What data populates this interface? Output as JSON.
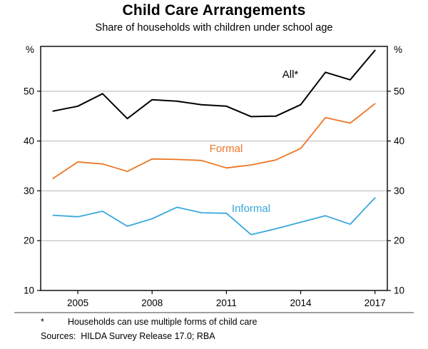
{
  "header": {
    "title": "Child Care Arrangements",
    "subtitle": "Share of households with children under school age"
  },
  "chart_data": {
    "type": "line",
    "title": "Child Care Arrangements",
    "subtitle": "Share of households with children under school age",
    "x": [
      2004,
      2005,
      2006,
      2007,
      2008,
      2009,
      2010,
      2011,
      2012,
      2013,
      2014,
      2015,
      2016,
      2017
    ],
    "series": [
      {
        "name": "All*",
        "color": "#000000",
        "values": [
          46.0,
          47.0,
          49.5,
          44.5,
          48.3,
          48.0,
          47.3,
          47.0,
          44.9,
          45.0,
          47.3,
          53.8,
          52.3,
          58.2
        ]
      },
      {
        "name": "Formal",
        "color": "#ED7524",
        "values": [
          32.5,
          35.8,
          35.4,
          33.9,
          36.4,
          36.3,
          36.1,
          34.6,
          35.2,
          36.2,
          38.5,
          44.7,
          43.6,
          47.5
        ]
      },
      {
        "name": "Informal",
        "color": "#39A7DC",
        "values": [
          25.1,
          24.8,
          25.9,
          22.9,
          24.4,
          26.7,
          25.6,
          25.5,
          21.2,
          22.4,
          23.7,
          25.0,
          23.3,
          28.6
        ]
      }
    ],
    "unit_left": "%",
    "unit_right": "%",
    "yticks": [
      10,
      20,
      30,
      40,
      50
    ],
    "xticks": [
      2005,
      2008,
      2011,
      2014,
      2017
    ],
    "ylim": [
      10,
      59
    ],
    "xlim": [
      2003.5,
      2017.5
    ],
    "grid": "horizontal",
    "legend_position": "inline-labels",
    "gridline_color": "#b5b5b5",
    "axis_color": "#000000"
  },
  "footnotes": {
    "symbol": "*",
    "note": "Households can use multiple forms of child care",
    "sources": "Sources:  HILDA Survey Release 17.0; RBA"
  }
}
